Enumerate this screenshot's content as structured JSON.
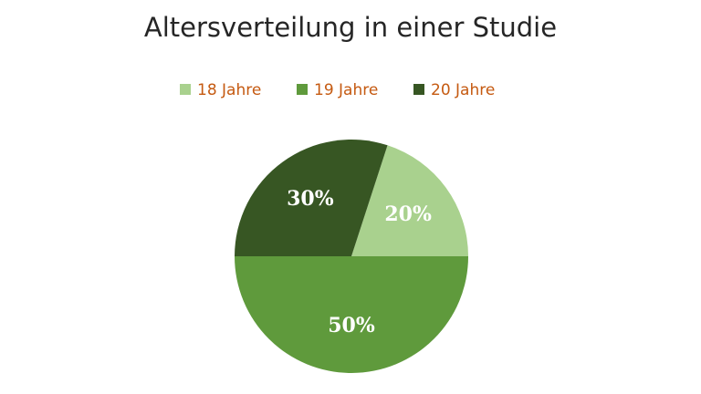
{
  "chart_data": {
    "type": "pie",
    "title": "Altersverteilung in einer Studie",
    "categories": [
      "18 Jahre",
      "19 Jahre",
      "20 Jahre"
    ],
    "values": [
      20,
      50,
      30
    ],
    "value_labels": [
      "20%",
      "50%",
      "30%"
    ],
    "colors": [
      "#a9d18e",
      "#5f9a3c",
      "#375623"
    ],
    "legend": "top"
  }
}
